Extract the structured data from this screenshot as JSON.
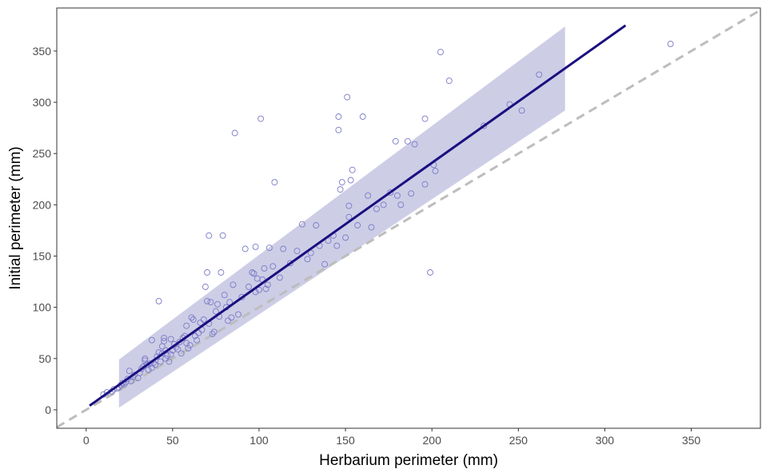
{
  "chart_data": {
    "type": "scatter",
    "title": "",
    "xlabel": "Herbarium perimeter (mm)",
    "ylabel": "Initial perimeter (mm)",
    "xlim": [
      -17,
      390
    ],
    "ylim": [
      -18,
      392
    ],
    "x_ticks": [
      0,
      50,
      100,
      150,
      200,
      250,
      300,
      350
    ],
    "y_ticks": [
      0,
      50,
      100,
      150,
      200,
      250,
      300,
      350
    ],
    "grid": false,
    "legend": "none",
    "colors": {
      "points": "#7b7bc8",
      "fit_line": "#1a0f80",
      "confidence_band": "#c8c8e3",
      "identity_line": "#bdbdbd",
      "panel_border": "#333333"
    },
    "identity_line": {
      "slope": 1,
      "intercept": 0,
      "style": "dashed"
    },
    "fit_line": {
      "x_start": 2,
      "x_end": 312,
      "y_start": 4,
      "y_end": 375
    },
    "confidence_band": [
      {
        "x": 19,
        "lower": 2,
        "upper": 49
      },
      {
        "x": 277,
        "lower": 292,
        "upper": 374
      }
    ],
    "series": [
      {
        "points": [
          [
            10,
            15
          ],
          [
            12,
            17
          ],
          [
            15,
            18
          ],
          [
            16,
            20
          ],
          [
            18,
            21
          ],
          [
            19,
            22
          ],
          [
            20,
            24
          ],
          [
            21,
            26
          ],
          [
            22,
            25
          ],
          [
            23,
            27
          ],
          [
            24,
            30
          ],
          [
            25,
            38
          ],
          [
            26,
            28
          ],
          [
            27,
            32
          ],
          [
            28,
            34
          ],
          [
            30,
            31
          ],
          [
            31,
            36
          ],
          [
            32,
            40
          ],
          [
            33,
            42
          ],
          [
            34,
            48
          ],
          [
            34,
            50
          ],
          [
            35,
            44
          ],
          [
            36,
            39
          ],
          [
            37,
            45
          ],
          [
            38,
            41
          ],
          [
            38,
            68
          ],
          [
            39,
            46
          ],
          [
            40,
            44
          ],
          [
            41,
            52
          ],
          [
            42,
            106
          ],
          [
            42,
            56
          ],
          [
            43,
            47
          ],
          [
            44,
            62
          ],
          [
            44,
            55
          ],
          [
            45,
            70
          ],
          [
            45,
            67
          ],
          [
            46,
            58
          ],
          [
            46,
            50
          ],
          [
            47,
            53
          ],
          [
            48,
            47
          ],
          [
            49,
            69
          ],
          [
            49,
            54
          ],
          [
            50,
            58
          ],
          [
            51,
            64
          ],
          [
            52,
            61
          ],
          [
            53,
            59
          ],
          [
            54,
            66
          ],
          [
            55,
            55
          ],
          [
            56,
            70
          ],
          [
            57,
            72
          ],
          [
            58,
            82
          ],
          [
            58,
            65
          ],
          [
            59,
            60
          ],
          [
            60,
            63
          ],
          [
            61,
            90
          ],
          [
            62,
            88
          ],
          [
            63,
            72
          ],
          [
            64,
            68
          ],
          [
            65,
            75
          ],
          [
            66,
            85
          ],
          [
            67,
            78
          ],
          [
            68,
            88
          ],
          [
            69,
            120
          ],
          [
            70,
            106
          ],
          [
            70,
            134
          ],
          [
            71,
            170
          ],
          [
            71,
            84
          ],
          [
            72,
            105
          ],
          [
            73,
            74
          ],
          [
            74,
            76
          ],
          [
            75,
            96
          ],
          [
            76,
            103
          ],
          [
            77,
            91
          ],
          [
            78,
            134
          ],
          [
            79,
            170
          ],
          [
            80,
            112
          ],
          [
            81,
            100
          ],
          [
            82,
            87
          ],
          [
            83,
            105
          ],
          [
            84,
            90
          ],
          [
            85,
            122
          ],
          [
            86,
            270
          ],
          [
            88,
            93
          ],
          [
            90,
            110
          ],
          [
            92,
            157
          ],
          [
            94,
            120
          ],
          [
            96,
            134
          ],
          [
            97,
            133
          ],
          [
            98,
            115
          ],
          [
            98,
            159
          ],
          [
            99,
            128
          ],
          [
            100,
            117
          ],
          [
            101,
            284
          ],
          [
            102,
            127
          ],
          [
            103,
            138
          ],
          [
            104,
            118
          ],
          [
            105,
            122
          ],
          [
            106,
            158
          ],
          [
            108,
            140
          ],
          [
            109,
            222
          ],
          [
            112,
            129
          ],
          [
            114,
            157
          ],
          [
            118,
            143
          ],
          [
            122,
            155
          ],
          [
            125,
            181
          ],
          [
            128,
            147
          ],
          [
            130,
            153
          ],
          [
            133,
            180
          ],
          [
            135,
            160
          ],
          [
            138,
            142
          ],
          [
            140,
            165
          ],
          [
            143,
            170
          ],
          [
            145,
            160
          ],
          [
            146,
            286
          ],
          [
            146,
            273
          ],
          [
            147,
            215
          ],
          [
            148,
            222
          ],
          [
            150,
            168
          ],
          [
            151,
            305
          ],
          [
            152,
            188
          ],
          [
            152,
            199
          ],
          [
            153,
            224
          ],
          [
            154,
            234
          ],
          [
            157,
            180
          ],
          [
            160,
            286
          ],
          [
            163,
            209
          ],
          [
            165,
            178
          ],
          [
            168,
            196
          ],
          [
            172,
            200
          ],
          [
            176,
            212
          ],
          [
            179,
            262
          ],
          [
            180,
            209
          ],
          [
            182,
            200
          ],
          [
            186,
            262
          ],
          [
            188,
            211
          ],
          [
            190,
            259
          ],
          [
            196,
            220
          ],
          [
            196,
            284
          ],
          [
            199,
            134
          ],
          [
            201,
            239
          ],
          [
            202,
            233
          ],
          [
            205,
            349
          ],
          [
            210,
            321
          ],
          [
            230,
            277
          ],
          [
            245,
            298
          ],
          [
            252,
            292
          ],
          [
            262,
            327
          ],
          [
            338,
            357
          ]
        ]
      }
    ]
  }
}
